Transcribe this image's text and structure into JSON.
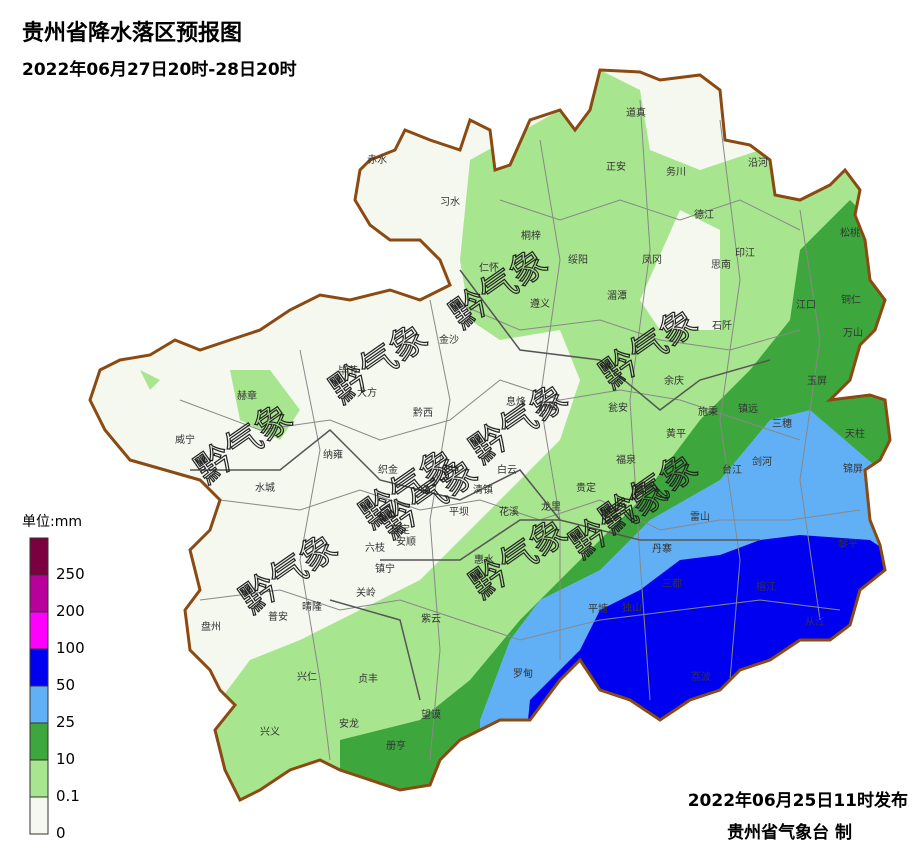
{
  "header": {
    "title": "贵州省降水落区预报图",
    "subtitle": "2022年06月27日20时-28日20时"
  },
  "legend": {
    "unit": "单位:mm",
    "labels": [
      0,
      0.1,
      10,
      25,
      50,
      100,
      200,
      250
    ],
    "colors": [
      "#f5f8ef",
      "#a8e58f",
      "#3da73d",
      "#61b0f5",
      "#0000f0",
      "#ff00ff",
      "#b8009a",
      "#7a0040"
    ]
  },
  "footer": {
    "issued": "2022年06月25日11时发布",
    "issuer": "贵州省气象台 制"
  },
  "counties": [
    "道真",
    "正安",
    "务川",
    "沿河",
    "赤水",
    "习水",
    "德江",
    "桐梓",
    "松桃",
    "印江",
    "绥阳",
    "凤冈",
    "思南",
    "仁怀",
    "湄潭",
    "江口",
    "铜仁",
    "遵义",
    "石阡",
    "万山",
    "金沙",
    "余庆",
    "毕节",
    "大方",
    "玉屏",
    "赫章",
    "息烽",
    "施秉",
    "镇远",
    "黔西",
    "开阳",
    "瓮安",
    "三穗",
    "天柱",
    "黄平",
    "威宁",
    "纳雍",
    "织金",
    "白云",
    "剑河",
    "锦屏",
    "福泉",
    "台江",
    "清镇",
    "贵定",
    "水城",
    "平坝",
    "花溪",
    "龙里",
    "雷山",
    "黎平",
    "普定",
    "安顺",
    "六枝",
    "惠水",
    "丹寨",
    "镇宁",
    "三都",
    "榕江",
    "关岭",
    "晴隆",
    "平塘",
    "独山",
    "从江",
    "普安",
    "盘州",
    "紫云",
    "荔波",
    "兴仁",
    "贞丰",
    "罗甸",
    "望谟",
    "兴义",
    "安龙",
    "册亨"
  ],
  "watermarks": [
    "黔气象",
    "黔气象",
    "黔气象",
    "黔气象",
    "黔气象",
    "黔气象",
    "黔气象",
    "黔气象",
    "黔气象",
    "黔气象",
    "黔气象"
  ]
}
